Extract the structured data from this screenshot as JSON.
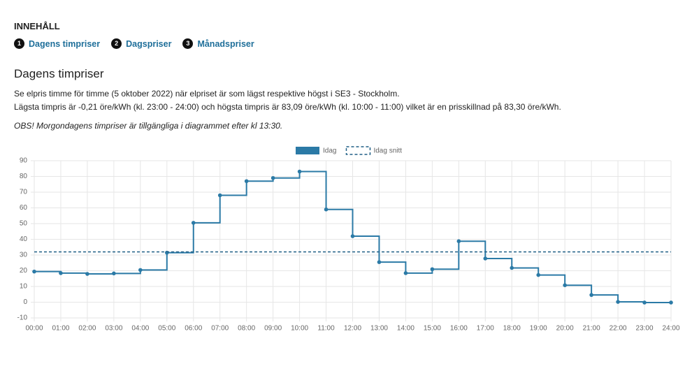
{
  "toc": {
    "title": "INNEHÅLL",
    "items": [
      {
        "num": "1",
        "label": "Dagens timpriser"
      },
      {
        "num": "2",
        "label": "Dagspriser"
      },
      {
        "num": "3",
        "label": "Månadspriser"
      }
    ]
  },
  "section": {
    "heading": "Dagens timpriser",
    "lines": [
      "Se elpris timme för timme (5 oktober 2022) när elpriset är som lägst respektive högst i SE3 - Stockholm.",
      "Lägsta timpris är -0,21 öre/kWh (kl. 23:00 - 24:00) och högsta timpris är 83,09 öre/kWh (kl. 10:00 - 11:00) vilket är en prisskillnad på 83,30 öre/kWh."
    ],
    "note": "OBS! Morgondagens timpriser är tillgängliga i diagrammet efter kl 13:30."
  },
  "chart_data": {
    "type": "step",
    "categories": [
      "00:00",
      "01:00",
      "02:00",
      "03:00",
      "04:00",
      "05:00",
      "06:00",
      "07:00",
      "08:00",
      "09:00",
      "10:00",
      "11:00",
      "12:00",
      "13:00",
      "14:00",
      "15:00",
      "16:00",
      "17:00",
      "18:00",
      "19:00",
      "20:00",
      "21:00",
      "22:00",
      "23:00",
      "24:00"
    ],
    "series": [
      {
        "name": "Idag",
        "color": "#2b7aa6",
        "values": [
          19.5,
          18.5,
          18,
          18.3,
          20.5,
          31.5,
          50.5,
          68,
          77,
          79,
          83.09,
          59,
          42,
          25.5,
          18.5,
          21,
          38.8,
          27.8,
          21.8,
          17.3,
          10.8,
          4.6,
          0.2,
          -0.21,
          -0.21
        ]
      },
      {
        "name": "Idag snitt",
        "color": "#1f5f86",
        "dashed": true,
        "values": [
          32,
          32,
          32,
          32,
          32,
          32,
          32,
          32,
          32,
          32,
          32,
          32,
          32,
          32,
          32,
          32,
          32,
          32,
          32,
          32,
          32,
          32,
          32,
          32,
          32
        ]
      }
    ],
    "ylim": [
      -10,
      90
    ],
    "yticks": [
      -10,
      0,
      10,
      20,
      30,
      40,
      50,
      60,
      70,
      80,
      90
    ],
    "grid": true,
    "legend": "top"
  }
}
